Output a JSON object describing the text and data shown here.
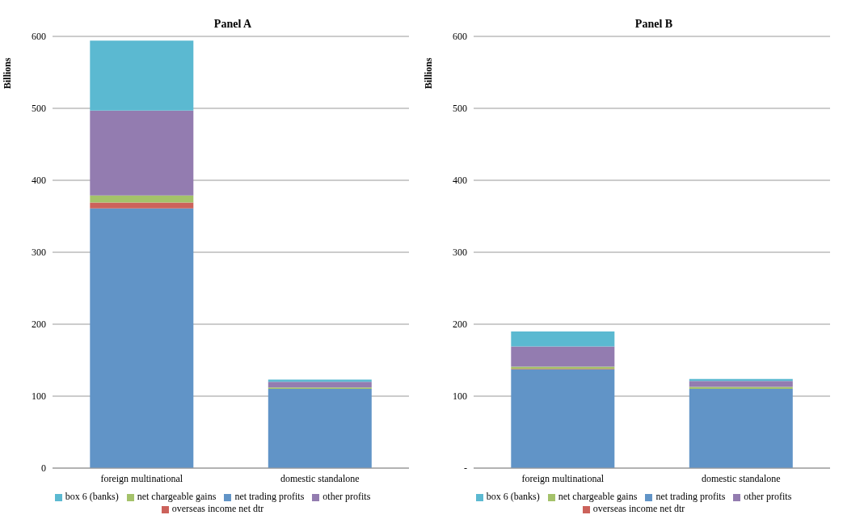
{
  "chart_data": [
    {
      "type": "bar",
      "title": "Panel A",
      "ylabel": "Billions",
      "categories": [
        "foreign multinational",
        "domestic standalone"
      ],
      "stacked": true,
      "grid": "y",
      "legend": "bottom",
      "ylim": [
        0,
        600
      ],
      "yticks": [
        0,
        100,
        200,
        300,
        400,
        500,
        600
      ],
      "series": [
        {
          "name": "net trading profits",
          "color": "#6194c7",
          "values": [
            361,
            110
          ]
        },
        {
          "name": "overseas income net dtr",
          "color": "#cc625b",
          "values": [
            8,
            null
          ]
        },
        {
          "name": "net chargeable gains",
          "color": "#a4c26a",
          "values": [
            10,
            2
          ]
        },
        {
          "name": "other profits",
          "color": "#937cb0",
          "values": [
            118,
            8
          ]
        },
        {
          "name": "box 6 (banks)",
          "color": "#5bb9d1",
          "values": [
            97,
            3
          ]
        }
      ]
    },
    {
      "type": "bar",
      "title": "Panel B",
      "ylabel": "Billions",
      "categories": [
        "foreign multinational",
        "domestic standalone"
      ],
      "stacked": true,
      "grid": "y",
      "legend": "bottom",
      "ylim": [
        0,
        600
      ],
      "yticks": [
        {
          "value": 0,
          "label": "-"
        },
        100,
        200,
        300,
        400,
        500,
        600
      ],
      "series": [
        {
          "name": "net trading profits",
          "color": "#6194c7",
          "values": [
            137,
            110
          ]
        },
        {
          "name": "overseas income net dtr",
          "color": "#cc625b",
          "values": [
            1,
            null
          ]
        },
        {
          "name": "net chargeable gains",
          "color": "#a4c26a",
          "values": [
            3,
            3
          ]
        },
        {
          "name": "other profits",
          "color": "#937cb0",
          "values": [
            28,
            8
          ]
        },
        {
          "name": "box 6 (banks)",
          "color": "#5bb9d1",
          "values": [
            21,
            3
          ]
        }
      ]
    }
  ]
}
